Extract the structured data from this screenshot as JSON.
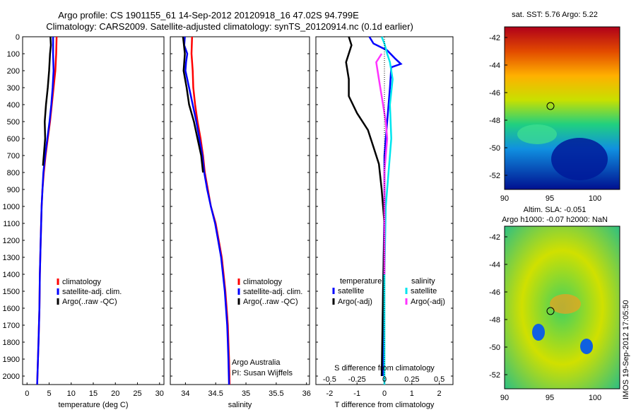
{
  "title": {
    "line1": "Argo profile: CS 1901155_61 14-Sep-2012 20120918_16 47.02S 94.799E",
    "line2": "Climatology: CARS2009. Satellite-adjusted climatology: synTS_20120914.nc (0.1d earlier)"
  },
  "depth_ticks": [
    "0",
    "100",
    "200",
    "300",
    "400",
    "500",
    "600",
    "700",
    "800",
    "900",
    "1000",
    "1100",
    "1200",
    "1300",
    "1400",
    "1500",
    "1600",
    "1700",
    "1800",
    "1900",
    "2000"
  ],
  "colors": {
    "red": "#ff0000",
    "blue": "#0000ff",
    "black": "#000000",
    "cyan": "#00e5ee",
    "magenta": "#ff33ff"
  },
  "map_right_ticks": [
    "-42",
    "-44",
    "-46",
    "-48",
    "-50",
    "-52"
  ],
  "map_x_ticks": [
    "90",
    "95",
    "100"
  ],
  "map_top_title": "sat. SST: 5.76 Argo: 5.22",
  "map_bottom_title_1": "Altim. SLA: -0.051",
  "map_bottom_title_2": "Argo h1000: -0.07 h2000: NaN",
  "side_stamp": "IMOS 19-Sep-2012 17:05:50",
  "chart_data": [
    {
      "type": "line",
      "xlabel": "temperature (deg C)",
      "x_ticks": [
        "0",
        "5",
        "10",
        "15",
        "20",
        "25",
        "30"
      ],
      "xlim": [
        -1,
        31
      ],
      "ylim": [
        0,
        2050
      ],
      "legend": [
        "climatology",
        "satellite-adj. clim.",
        "Argo(..raw -QC)"
      ],
      "series": [
        {
          "name": "climatology",
          "color": "#ff0000",
          "points": [
            [
              6.7,
              0
            ],
            [
              6.6,
              100
            ],
            [
              6.4,
              200
            ],
            [
              6.0,
              300
            ],
            [
              5.6,
              400
            ],
            [
              5.2,
              500
            ],
            [
              4.7,
              600
            ],
            [
              4.2,
              700
            ],
            [
              3.8,
              800
            ],
            [
              3.5,
              900
            ],
            [
              3.3,
              1000
            ],
            [
              3.1,
              1200
            ],
            [
              2.9,
              1400
            ],
            [
              2.8,
              1600
            ],
            [
              2.6,
              1800
            ],
            [
              2.3,
              2050
            ]
          ]
        },
        {
          "name": "satellite-adj. clim.",
          "color": "#0000ff",
          "points": [
            [
              5.9,
              0
            ],
            [
              5.9,
              100
            ],
            [
              6.0,
              200
            ],
            [
              5.8,
              300
            ],
            [
              5.5,
              400
            ],
            [
              5.1,
              500
            ],
            [
              4.6,
              600
            ],
            [
              4.1,
              700
            ],
            [
              3.7,
              800
            ],
            [
              3.5,
              900
            ],
            [
              3.3,
              1000
            ],
            [
              3.1,
              1200
            ],
            [
              2.9,
              1400
            ],
            [
              2.8,
              1600
            ],
            [
              2.6,
              1800
            ],
            [
              2.3,
              2050
            ]
          ]
        },
        {
          "name": "Argo(..raw -QC)",
          "color": "#000000",
          "points": [
            [
              5.3,
              0
            ],
            [
              5.4,
              50
            ],
            [
              5.2,
              100
            ],
            [
              5.0,
              200
            ],
            [
              4.7,
              300
            ],
            [
              4.3,
              400
            ],
            [
              4.0,
              500
            ],
            [
              4.1,
              600
            ],
            [
              3.8,
              700
            ],
            [
              3.6,
              760
            ]
          ]
        }
      ]
    },
    {
      "type": "line",
      "xlabel": "salinity",
      "x_ticks": [
        "34",
        "34.5",
        "35",
        "35.5",
        "36"
      ],
      "x_tick_values": [
        34,
        34.5,
        35,
        35.5,
        36
      ],
      "xlim": [
        33.75,
        36.05
      ],
      "ylim": [
        0,
        2050
      ],
      "legend": [
        "climatology",
        "satellite-adj. clim.",
        "Argo(..raw -QC)"
      ],
      "annotation": [
        "Argo Australia",
        "PI: Susan Wijffels"
      ],
      "series": [
        {
          "name": "climatology",
          "color": "#ff0000",
          "points": [
            [
              34.11,
              0
            ],
            [
              34.1,
              100
            ],
            [
              34.12,
              200
            ],
            [
              34.13,
              300
            ],
            [
              34.16,
              400
            ],
            [
              34.2,
              500
            ],
            [
              34.25,
              600
            ],
            [
              34.29,
              700
            ],
            [
              34.32,
              800
            ],
            [
              34.37,
              900
            ],
            [
              34.42,
              1000
            ],
            [
              34.5,
              1100
            ],
            [
              34.55,
              1200
            ],
            [
              34.6,
              1300
            ],
            [
              34.63,
              1400
            ],
            [
              34.66,
              1500
            ],
            [
              34.68,
              1600
            ],
            [
              34.7,
              1700
            ],
            [
              34.71,
              1800
            ],
            [
              34.72,
              1900
            ],
            [
              34.73,
              2050
            ]
          ]
        },
        {
          "name": "satellite-adj. clim.",
          "color": "#0000ff",
          "points": [
            [
              33.99,
              0
            ],
            [
              33.98,
              50
            ],
            [
              34.03,
              100
            ],
            [
              34.01,
              150
            ],
            [
              34.0,
              200
            ],
            [
              34.06,
              300
            ],
            [
              34.12,
              400
            ],
            [
              34.18,
              500
            ],
            [
              34.23,
              600
            ],
            [
              34.28,
              700
            ],
            [
              34.31,
              800
            ],
            [
              34.36,
              900
            ],
            [
              34.42,
              1000
            ],
            [
              34.49,
              1100
            ],
            [
              34.54,
              1200
            ],
            [
              34.59,
              1300
            ],
            [
              34.62,
              1400
            ],
            [
              34.65,
              1500
            ],
            [
              34.67,
              1600
            ],
            [
              34.69,
              1700
            ],
            [
              34.7,
              1800
            ],
            [
              34.71,
              1900
            ],
            [
              34.72,
              2050
            ]
          ]
        },
        {
          "name": "Argo(..raw -QC)",
          "color": "#000000",
          "points": [
            [
              33.96,
              0
            ],
            [
              33.97,
              30
            ],
            [
              33.99,
              100
            ],
            [
              33.97,
              200
            ],
            [
              34.02,
              300
            ],
            [
              34.06,
              400
            ],
            [
              34.14,
              500
            ],
            [
              34.2,
              600
            ],
            [
              34.26,
              700
            ],
            [
              34.29,
              800
            ]
          ]
        }
      ]
    },
    {
      "type": "line",
      "xlabel": "T difference from climatology",
      "xlabel_top": "S difference from climatology",
      "x_ticks": [
        "-2",
        "-1",
        "0",
        "1",
        "2"
      ],
      "x_tick_values": [
        -2,
        -1,
        0,
        1,
        2
      ],
      "s_ticks": [
        "-0.5",
        "-0.25",
        "0",
        "0.25",
        "0.5"
      ],
      "s_tick_values": [
        -0.5,
        -0.25,
        0,
        0.25,
        0.5
      ],
      "xlim": [
        -2.5,
        2.5
      ],
      "ylim": [
        0,
        2050
      ],
      "legend_left_title": "temperature",
      "legend_right_title": "salinity",
      "legend": [
        "satellite",
        "Argo(-adj)",
        "satellite",
        "Argo(-adj)"
      ],
      "series": [
        {
          "name": "satellite",
          "color": "#0000ff",
          "points": [
            [
              -0.55,
              0
            ],
            [
              -0.4,
              40
            ],
            [
              0.1,
              80
            ],
            [
              0.4,
              130
            ],
            [
              0.6,
              160
            ],
            [
              0.25,
              180
            ],
            [
              0.2,
              300
            ],
            [
              0.1,
              500
            ],
            [
              0.0,
              700
            ],
            [
              0.0,
              1000
            ],
            [
              -0.05,
              1500
            ],
            [
              -0.05,
              2000
            ]
          ]
        },
        {
          "name": "Argo(-adj)",
          "color": "#000000",
          "points": [
            [
              -1.3,
              0
            ],
            [
              -1.2,
              50
            ],
            [
              -1.4,
              150
            ],
            [
              -1.3,
              250
            ],
            [
              -1.3,
              350
            ],
            [
              -1.0,
              450
            ],
            [
              -0.6,
              550
            ],
            [
              -0.4,
              650
            ],
            [
              -0.2,
              750
            ],
            [
              -0.1,
              900
            ],
            [
              0.0,
              1100
            ],
            [
              -0.05,
              1500
            ],
            [
              -0.1,
              2000
            ]
          ]
        },
        {
          "name": "satellite",
          "color": "#00e5ee",
          "points": [
            [
              -0.1,
              0
            ],
            [
              0.0,
              40
            ],
            [
              0.1,
              100
            ],
            [
              0.2,
              150
            ],
            [
              0.3,
              250
            ],
            [
              0.2,
              400
            ],
            [
              0.25,
              600
            ],
            [
              0.15,
              800
            ],
            [
              0.05,
              1000
            ],
            [
              0.0,
              1400
            ],
            [
              0.0,
              2050
            ]
          ]
        },
        {
          "name": "Argo(-adj)",
          "color": "#ff33ff",
          "points": [
            [
              -0.1,
              100
            ],
            [
              -0.3,
              150
            ],
            [
              -0.2,
              250
            ],
            [
              -0.1,
              350
            ],
            [
              0.05,
              500
            ],
            [
              0.1,
              600
            ],
            [
              0.05,
              700
            ],
            [
              0.0,
              800
            ],
            [
              0.0,
              1000
            ],
            [
              0.0,
              1400
            ]
          ]
        }
      ]
    }
  ]
}
